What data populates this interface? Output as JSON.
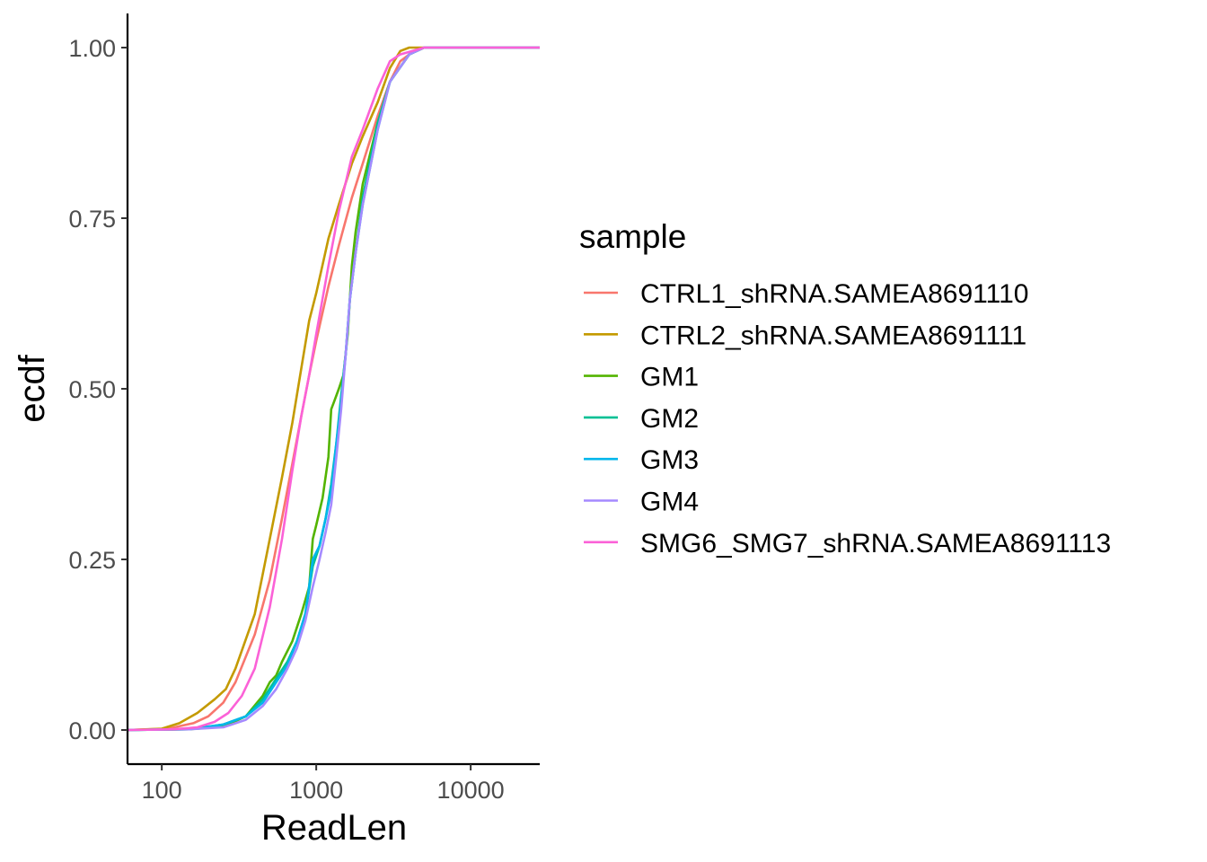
{
  "chart_data": {
    "type": "line",
    "xlabel": "ReadLen",
    "ylabel": "ecdf",
    "x_scale": "log10",
    "xlim": [
      60,
      28000
    ],
    "ylim": [
      -0.05,
      1.05
    ],
    "x_ticks": [
      100,
      1000,
      10000
    ],
    "x_tick_labels": [
      "100",
      "1000",
      "10000"
    ],
    "y_ticks": [
      0,
      0.25,
      0.5,
      0.75,
      1
    ],
    "y_tick_labels": [
      "0.00",
      "0.25",
      "0.50",
      "0.75",
      "1.00"
    ],
    "grid": false,
    "legend": {
      "title": "sample",
      "placement": "right"
    },
    "series": [
      {
        "name": "CTRL1_shRNA.SAMEA8691110",
        "color": "#F8766D",
        "points": [
          [
            60,
            0
          ],
          [
            110,
            0.002
          ],
          [
            160,
            0.01
          ],
          [
            200,
            0.02
          ],
          [
            250,
            0.04
          ],
          [
            300,
            0.07
          ],
          [
            400,
            0.14
          ],
          [
            500,
            0.22
          ],
          [
            600,
            0.31
          ],
          [
            700,
            0.39
          ],
          [
            800,
            0.46
          ],
          [
            900,
            0.52
          ],
          [
            1000,
            0.57
          ],
          [
            1200,
            0.65
          ],
          [
            1400,
            0.71
          ],
          [
            1700,
            0.78
          ],
          [
            2000,
            0.83
          ],
          [
            2500,
            0.9
          ],
          [
            3000,
            0.95
          ],
          [
            3500,
            0.98
          ],
          [
            4000,
            0.99
          ],
          [
            5000,
            1
          ],
          [
            28000,
            1
          ]
        ]
      },
      {
        "name": "CTRL2_shRNA.SAMEA8691111",
        "color": "#C49A00",
        "points": [
          [
            60,
            0
          ],
          [
            100,
            0.002
          ],
          [
            130,
            0.01
          ],
          [
            170,
            0.025
          ],
          [
            220,
            0.045
          ],
          [
            260,
            0.06
          ],
          [
            300,
            0.09
          ],
          [
            400,
            0.17
          ],
          [
            500,
            0.28
          ],
          [
            600,
            0.37
          ],
          [
            700,
            0.45
          ],
          [
            800,
            0.53
          ],
          [
            900,
            0.6
          ],
          [
            1000,
            0.64
          ],
          [
            1200,
            0.72
          ],
          [
            1400,
            0.77
          ],
          [
            1700,
            0.83
          ],
          [
            2000,
            0.87
          ],
          [
            2500,
            0.92
          ],
          [
            3000,
            0.97
          ],
          [
            3500,
            0.995
          ],
          [
            4000,
            1
          ],
          [
            28000,
            1
          ]
        ]
      },
      {
        "name": "GM1",
        "color": "#53B400",
        "points": [
          [
            60,
            0
          ],
          [
            150,
            0.001
          ],
          [
            250,
            0.005
          ],
          [
            350,
            0.02
          ],
          [
            450,
            0.05
          ],
          [
            500,
            0.07
          ],
          [
            550,
            0.08
          ],
          [
            600,
            0.1
          ],
          [
            700,
            0.13
          ],
          [
            800,
            0.17
          ],
          [
            900,
            0.21
          ],
          [
            950,
            0.28
          ],
          [
            1000,
            0.3
          ],
          [
            1100,
            0.34
          ],
          [
            1200,
            0.4
          ],
          [
            1250,
            0.47
          ],
          [
            1300,
            0.48
          ],
          [
            1400,
            0.5
          ],
          [
            1500,
            0.52
          ],
          [
            1600,
            0.58
          ],
          [
            1700,
            0.68
          ],
          [
            1800,
            0.73
          ],
          [
            2000,
            0.8
          ],
          [
            2500,
            0.89
          ],
          [
            3000,
            0.95
          ],
          [
            4000,
            0.99
          ],
          [
            5000,
            1
          ],
          [
            28000,
            1
          ]
        ]
      },
      {
        "name": "GM2",
        "color": "#00C094",
        "points": [
          [
            60,
            0
          ],
          [
            150,
            0.001
          ],
          [
            250,
            0.008
          ],
          [
            350,
            0.02
          ],
          [
            450,
            0.045
          ],
          [
            550,
            0.075
          ],
          [
            650,
            0.1
          ],
          [
            750,
            0.13
          ],
          [
            850,
            0.17
          ],
          [
            950,
            0.24
          ],
          [
            1050,
            0.27
          ],
          [
            1150,
            0.31
          ],
          [
            1250,
            0.36
          ],
          [
            1350,
            0.42
          ],
          [
            1450,
            0.49
          ],
          [
            1550,
            0.55
          ],
          [
            1650,
            0.63
          ],
          [
            1800,
            0.7
          ],
          [
            2000,
            0.78
          ],
          [
            2500,
            0.89
          ],
          [
            3000,
            0.95
          ],
          [
            4000,
            0.99
          ],
          [
            5000,
            1
          ],
          [
            28000,
            1
          ]
        ]
      },
      {
        "name": "GM3",
        "color": "#00B6EB",
        "points": [
          [
            60,
            0
          ],
          [
            150,
            0.001
          ],
          [
            250,
            0.008
          ],
          [
            350,
            0.02
          ],
          [
            450,
            0.04
          ],
          [
            550,
            0.07
          ],
          [
            650,
            0.095
          ],
          [
            750,
            0.13
          ],
          [
            850,
            0.17
          ],
          [
            950,
            0.25
          ],
          [
            1050,
            0.27
          ],
          [
            1150,
            0.31
          ],
          [
            1250,
            0.35
          ],
          [
            1350,
            0.42
          ],
          [
            1450,
            0.48
          ],
          [
            1550,
            0.55
          ],
          [
            1650,
            0.63
          ],
          [
            1800,
            0.7
          ],
          [
            2000,
            0.77
          ],
          [
            2500,
            0.88
          ],
          [
            3000,
            0.95
          ],
          [
            4000,
            0.99
          ],
          [
            5000,
            1
          ],
          [
            28000,
            1
          ]
        ]
      },
      {
        "name": "GM4",
        "color": "#A58AFF",
        "points": [
          [
            60,
            0
          ],
          [
            150,
            0.001
          ],
          [
            250,
            0.004
          ],
          [
            350,
            0.015
          ],
          [
            450,
            0.035
          ],
          [
            550,
            0.06
          ],
          [
            650,
            0.09
          ],
          [
            750,
            0.12
          ],
          [
            850,
            0.16
          ],
          [
            950,
            0.21
          ],
          [
            1050,
            0.25
          ],
          [
            1150,
            0.29
          ],
          [
            1250,
            0.33
          ],
          [
            1350,
            0.4
          ],
          [
            1450,
            0.47
          ],
          [
            1550,
            0.55
          ],
          [
            1650,
            0.63
          ],
          [
            1800,
            0.7
          ],
          [
            2000,
            0.77
          ],
          [
            2500,
            0.88
          ],
          [
            3000,
            0.95
          ],
          [
            4000,
            0.99
          ],
          [
            5000,
            1
          ],
          [
            28000,
            1
          ]
        ]
      },
      {
        "name": "SMG6_SMG7_shRNA.SAMEA8691113",
        "color": "#FB61D7",
        "points": [
          [
            60,
            0
          ],
          [
            120,
            0.001
          ],
          [
            170,
            0.004
          ],
          [
            220,
            0.012
          ],
          [
            270,
            0.025
          ],
          [
            330,
            0.05
          ],
          [
            400,
            0.09
          ],
          [
            500,
            0.18
          ],
          [
            600,
            0.28
          ],
          [
            700,
            0.38
          ],
          [
            800,
            0.46
          ],
          [
            900,
            0.52
          ],
          [
            1000,
            0.58
          ],
          [
            1200,
            0.68
          ],
          [
            1400,
            0.76
          ],
          [
            1700,
            0.84
          ],
          [
            2000,
            0.88
          ],
          [
            2500,
            0.94
          ],
          [
            3000,
            0.98
          ],
          [
            3500,
            0.99
          ],
          [
            5000,
            1
          ],
          [
            28000,
            1
          ]
        ]
      }
    ]
  }
}
